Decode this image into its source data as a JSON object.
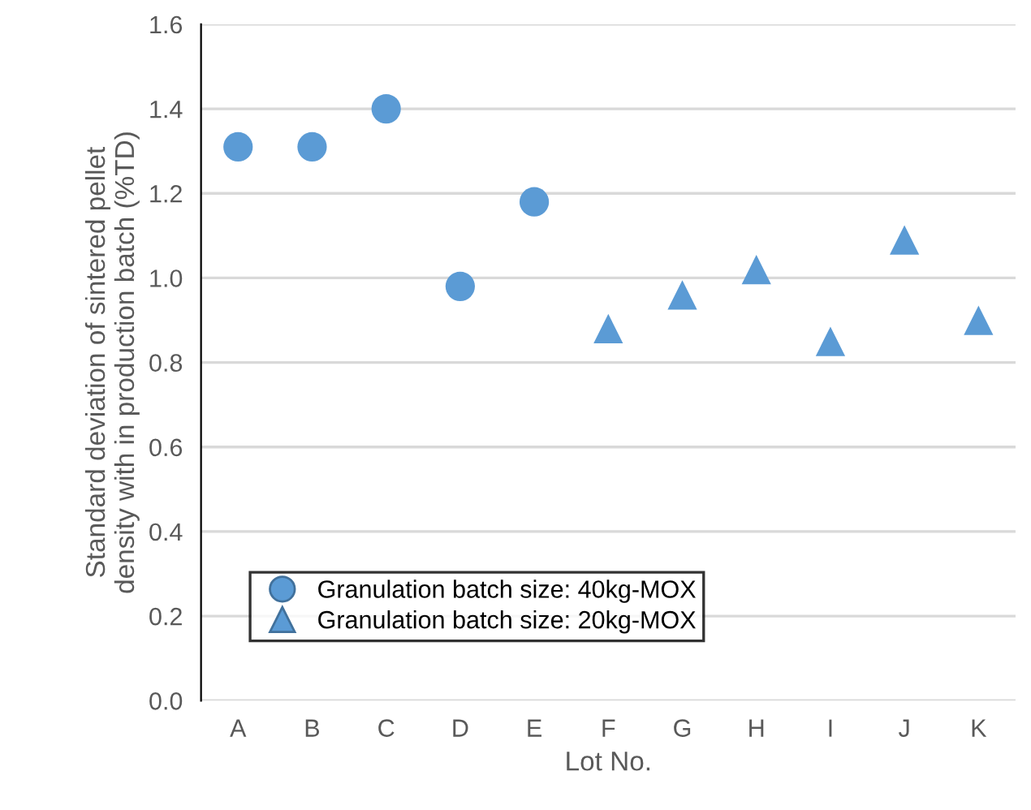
{
  "chart_data": {
    "type": "scatter",
    "xlabel": "Lot No.",
    "ylabel": "Standard deviation of sintered pellet\ndensity with in production batch (%TD)",
    "categories": [
      "A",
      "B",
      "C",
      "D",
      "E",
      "F",
      "G",
      "H",
      "I",
      "J",
      "K"
    ],
    "series": [
      {
        "name": "Granulation batch size: 40kg-MOX",
        "color": "#5b9bd5",
        "marker": "circle",
        "x": [
          "A",
          "B",
          "C",
          "D",
          "E"
        ],
        "values": [
          1.31,
          1.31,
          1.4,
          0.98,
          1.18
        ]
      },
      {
        "name": "Granulation batch size: 20kg-MOX",
        "color": "#5b9bd5",
        "marker": "triangle",
        "x": [
          "F",
          "G",
          "H",
          "I",
          "J",
          "K"
        ],
        "values": [
          0.88,
          0.96,
          1.02,
          0.85,
          1.09,
          0.9
        ]
      }
    ],
    "ylim": [
      0,
      1.6
    ],
    "yticks": [
      {
        "value": 0,
        "label": "0.0"
      },
      {
        "value": 0.2,
        "label": "0.2"
      },
      {
        "value": 0.4,
        "label": "0.4"
      },
      {
        "value": 0.6,
        "label": "0.6"
      },
      {
        "value": 0.8,
        "label": "0.8"
      },
      {
        "value": 1.0,
        "label": "1.0"
      },
      {
        "value": 1.2,
        "label": "1.2"
      },
      {
        "value": 1.4,
        "label": "1.4"
      },
      {
        "value": 1.6,
        "label": "1.6"
      }
    ],
    "grid": "y",
    "legend": "bottom left"
  }
}
